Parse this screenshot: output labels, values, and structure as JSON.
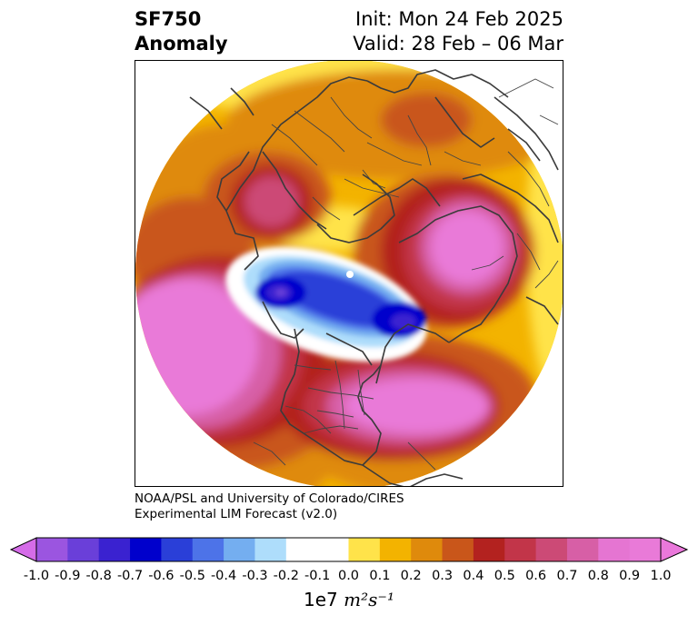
{
  "title": {
    "line1": "SF750",
    "line2": "Anomaly"
  },
  "run": {
    "init": "Init: Mon 24 Feb 2025",
    "valid": "Valid: 28 Feb – 06 Mar"
  },
  "credit": {
    "line1": "NOAA/PSL and University of Colorado/CIRES",
    "line2": "Experimental LIM Forecast (v2.0)"
  },
  "colorbar": {
    "unit_prefix": "1e7",
    "unit_math": "m²s⁻¹",
    "ticks": [
      "-1.0",
      "-0.9",
      "-0.8",
      "-0.7",
      "-0.6",
      "-0.5",
      "-0.4",
      "-0.3",
      "-0.2",
      "-0.1",
      "0.0",
      "0.1",
      "0.2",
      "0.3",
      "0.4",
      "0.5",
      "0.6",
      "0.7",
      "0.8",
      "0.9",
      "1.0"
    ],
    "colors": [
      "#9b55e0",
      "#6a3fd9",
      "#3a22d0",
      "#0000cc",
      "#2a3fd8",
      "#4d73e8",
      "#74aef0",
      "#aeddfb",
      "#ffffff",
      "#ffffff",
      "#ffe34a",
      "#f3b300",
      "#df8a0c",
      "#c9561a",
      "#b3221f",
      "#c23549",
      "#cc4a76",
      "#d75fa6",
      "#e575d2",
      "#e97ad8"
    ],
    "under_color": "#d56ce8",
    "over_color": "#ea78db"
  }
}
